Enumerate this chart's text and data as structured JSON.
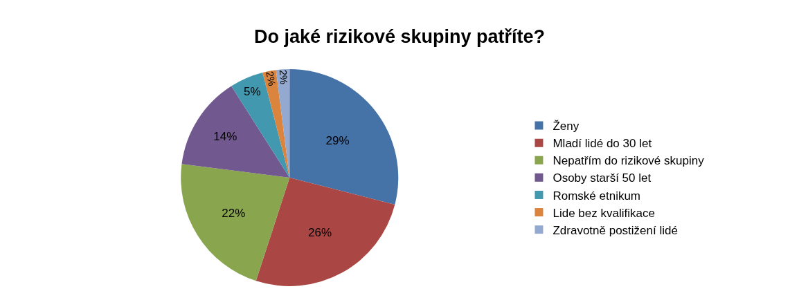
{
  "chart_data": {
    "type": "pie",
    "title": "Do jaké rizikové skupiny patříte?",
    "categories": [
      "Ženy",
      "Mladí lidé do 30 let",
      "Nepatřím do rizikové skupiny",
      "Osoby starší 50 let",
      "Romské etnikum",
      "Lide bez kvalifikace",
      "Zdravotně postižení lidé"
    ],
    "values": [
      29,
      26,
      22,
      14,
      5,
      2,
      2
    ],
    "value_labels": [
      "29%",
      "26%",
      "22%",
      "14%",
      "5%",
      "2%",
      "2%"
    ],
    "colors": [
      "#4572a7",
      "#aa4643",
      "#89a54e",
      "#71588f",
      "#4198af",
      "#db843d",
      "#93a9cf"
    ],
    "legend": "right"
  }
}
